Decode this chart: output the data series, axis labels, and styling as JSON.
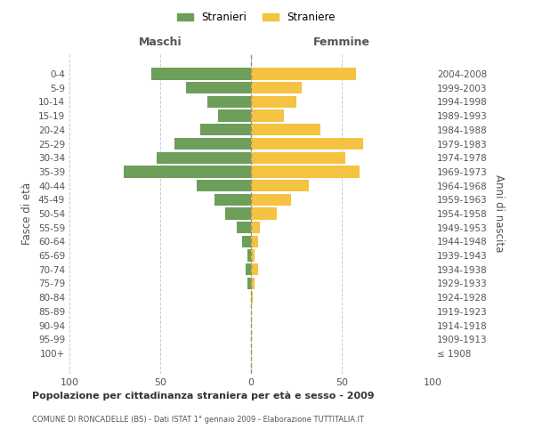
{
  "age_groups": [
    "100+",
    "95-99",
    "90-94",
    "85-89",
    "80-84",
    "75-79",
    "70-74",
    "65-69",
    "60-64",
    "55-59",
    "50-54",
    "45-49",
    "40-44",
    "35-39",
    "30-34",
    "25-29",
    "20-24",
    "15-19",
    "10-14",
    "5-9",
    "0-4"
  ],
  "birth_years": [
    "≤ 1908",
    "1909-1913",
    "1914-1918",
    "1919-1923",
    "1924-1928",
    "1929-1933",
    "1934-1938",
    "1939-1943",
    "1944-1948",
    "1949-1953",
    "1954-1958",
    "1959-1963",
    "1964-1968",
    "1969-1973",
    "1974-1978",
    "1979-1983",
    "1984-1988",
    "1989-1993",
    "1994-1998",
    "1999-2003",
    "2004-2008"
  ],
  "males": [
    0,
    0,
    0,
    0,
    0,
    2,
    3,
    2,
    5,
    8,
    14,
    20,
    30,
    70,
    52,
    42,
    28,
    18,
    24,
    36,
    55
  ],
  "females": [
    0,
    0,
    0,
    0,
    1,
    2,
    4,
    2,
    4,
    5,
    14,
    22,
    32,
    60,
    52,
    62,
    38,
    18,
    25,
    28,
    58
  ],
  "male_color": "#6d9e5a",
  "female_color": "#f5c242",
  "grid_color": "#cccccc",
  "bar_height": 0.85,
  "xlim": [
    -100,
    100
  ],
  "title": "Popolazione per cittadinanza straniera per età e sesso - 2009",
  "subtitle": "COMUNE DI RONCADELLE (BS) - Dati ISTAT 1° gennaio 2009 - Elaborazione TUTTITALIA.IT",
  "ylabel_left": "Fasce di età",
  "ylabel_right": "Anni di nascita",
  "legend_stranieri": "Stranieri",
  "legend_straniere": "Straniere",
  "header_maschi": "Maschi",
  "header_femmine": "Femmine",
  "xticks": [
    -100,
    -50,
    0,
    50,
    100
  ],
  "xticklabels": [
    "100",
    "50",
    "0",
    "50",
    "100"
  ]
}
